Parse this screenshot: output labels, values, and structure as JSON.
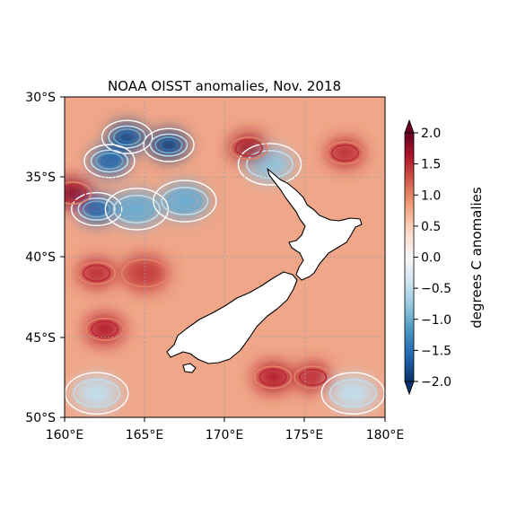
{
  "title": "NOAA OISST anomalies, Nov. 2018",
  "map": {
    "lon_range": [
      160,
      180
    ],
    "lat_range": [
      -50,
      -30
    ],
    "gridlines": "dotted",
    "x_ticks": [
      "160°E",
      "165°E",
      "170°E",
      "175°E",
      "180°E"
    ],
    "y_ticks": [
      "30°S",
      "35°S",
      "40°S",
      "45°S",
      "50°S"
    ],
    "land_fill": "#ffffff",
    "coastline": "New Zealand"
  },
  "colorbar": {
    "label": "degrees C anomalies",
    "colormap": "RdBu_r",
    "range": [
      -2.0,
      2.0
    ],
    "extend": "both",
    "ticks": [
      "2.0",
      "1.5",
      "1.0",
      "0.5",
      "0.0",
      "−0.5",
      "−1.0",
      "−1.5",
      "−2.0"
    ],
    "colors": [
      "#08306b",
      "#2166ac",
      "#4393c3",
      "#92c5de",
      "#d1e5f0",
      "#f7f7f7",
      "#fddbc7",
      "#f4a582",
      "#d6604d",
      "#b2182b",
      "#67001f"
    ]
  },
  "chart_data": {
    "type": "heatmap",
    "title": "NOAA OISST anomalies, Nov. 2018",
    "xlabel": "",
    "ylabel": "",
    "xlim": [
      160,
      180
    ],
    "ylim": [
      -50,
      -30
    ],
    "zlim": [
      -2.0,
      2.0
    ],
    "zlabel": "degrees C anomalies",
    "features": [
      {
        "lon": 163.9,
        "lat": -32.5,
        "value": -1.8
      },
      {
        "lon": 166.5,
        "lat": -33.0,
        "value": -1.9
      },
      {
        "lon": 162.8,
        "lat": -34.0,
        "value": -1.6
      },
      {
        "lon": 162.0,
        "lat": -37.0,
        "value": -1.6
      },
      {
        "lon": 164.5,
        "lat": -37.0,
        "value": -1.0
      },
      {
        "lon": 167.5,
        "lat": -36.5,
        "value": -1.0
      },
      {
        "lon": 172.8,
        "lat": -34.2,
        "value": -0.8
      },
      {
        "lon": 160.5,
        "lat": -36.0,
        "value": 1.8
      },
      {
        "lon": 171.5,
        "lat": -33.2,
        "value": 1.7
      },
      {
        "lon": 177.5,
        "lat": -33.5,
        "value": 1.5
      },
      {
        "lon": 162.0,
        "lat": -41.0,
        "value": 1.5
      },
      {
        "lon": 165.0,
        "lat": -41.0,
        "value": 1.4
      },
      {
        "lon": 162.5,
        "lat": -44.5,
        "value": 1.6
      },
      {
        "lon": 173.0,
        "lat": -47.5,
        "value": 1.6
      },
      {
        "lon": 175.5,
        "lat": -47.5,
        "value": 1.5
      },
      {
        "lon": 162.0,
        "lat": -48.5,
        "value": -0.5
      },
      {
        "lon": 178.0,
        "lat": -48.5,
        "value": -0.5
      }
    ]
  }
}
